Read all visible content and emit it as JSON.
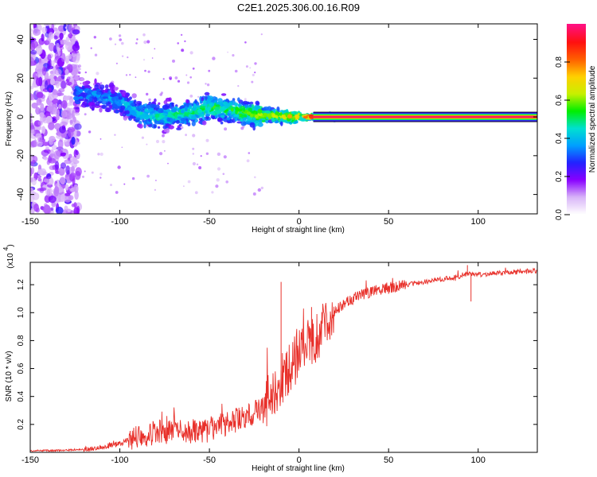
{
  "title": "C2E1.2025.306.00.16.R09",
  "chart_data": [
    {
      "type": "heatmap",
      "title": "C2E1.2025.306.00.16.R09",
      "xlabel": "Height of straight line (km)",
      "ylabel": "Frequency (Hz)",
      "xlim": [
        -150,
        133
      ],
      "ylim": [
        -50,
        48
      ],
      "x_ticks": [
        -150,
        -100,
        -50,
        0,
        50,
        100
      ],
      "y_ticks": [
        -40,
        -20,
        0,
        20,
        40
      ],
      "colorbar": {
        "label": "Normalized spectral amplitude",
        "range": [
          0.0,
          1.0
        ],
        "ticks": [
          0.0,
          0.2,
          0.4,
          0.6,
          0.8
        ],
        "tick_labels": [
          "0.0",
          "0.2",
          "0.4",
          "0.6",
          "0.8"
        ],
        "colormap": [
          "#ffffff",
          "#d8b4f8",
          "#8800ff",
          "#2222ff",
          "#00a0ff",
          "#00e0d0",
          "#00ee00",
          "#c8f000",
          "#ffd000",
          "#ff6000",
          "#ff1010",
          "#ff1080"
        ]
      },
      "ridge": {
        "x": [
          -125,
          -110,
          -100,
          -90,
          -80,
          -70,
          -60,
          -50,
          -40,
          -30,
          -20,
          -10,
          0,
          10,
          20,
          50,
          100,
          133
        ],
        "freq": [
          12,
          10,
          8,
          2,
          0,
          1,
          2,
          5,
          4,
          2,
          1,
          0.5,
          0,
          0,
          0,
          0,
          0,
          0
        ],
        "amplitude": [
          0.25,
          0.3,
          0.3,
          0.35,
          0.38,
          0.4,
          0.42,
          0.45,
          0.45,
          0.5,
          0.55,
          0.6,
          0.65,
          0.9,
          0.95,
          0.95,
          0.95,
          0.95
        ]
      },
      "noise_band_x": [
        -150,
        -123
      ]
    },
    {
      "type": "line",
      "xlabel": "Height of straight line (km)",
      "ylabel": "SNR (10 * v/v)",
      "multiplier_label": "(x10",
      "multiplier_exp": "4",
      "xlim": [
        -150,
        133
      ],
      "ylim": [
        0,
        1.36
      ],
      "x_ticks": [
        -150,
        -100,
        -50,
        0,
        50,
        100
      ],
      "y_ticks": [
        0.2,
        0.4,
        0.6,
        0.8,
        1.0,
        1.2
      ],
      "y_tick_labels": [
        "0.2",
        "0.4",
        "0.6",
        "0.8",
        "1.0",
        "1.2"
      ],
      "series": [
        {
          "name": "SNR",
          "color": "#e8302a",
          "x": [
            -150,
            -130,
            -120,
            -110,
            -100,
            -95,
            -90,
            -80,
            -70,
            -60,
            -50,
            -40,
            -30,
            -20,
            -15,
            -10,
            -5,
            0,
            5,
            10,
            15,
            20,
            30,
            40,
            50,
            60,
            70,
            80,
            90,
            95,
            100,
            110,
            120,
            133
          ],
          "y": [
            0.01,
            0.015,
            0.02,
            0.04,
            0.06,
            0.09,
            0.12,
            0.14,
            0.15,
            0.15,
            0.16,
            0.2,
            0.25,
            0.32,
            0.42,
            0.52,
            0.6,
            0.7,
            0.78,
            0.82,
            0.92,
            1.02,
            1.1,
            1.15,
            1.18,
            1.2,
            1.22,
            1.24,
            1.26,
            1.28,
            1.27,
            1.28,
            1.29,
            1.3
          ]
        }
      ],
      "spikes": [
        {
          "x": -10,
          "y": 1.22
        },
        {
          "x": 7,
          "y": 1.04
        },
        {
          "x": 94,
          "y": 1.34
        },
        {
          "x": 96,
          "y": 1.08
        }
      ]
    }
  ]
}
